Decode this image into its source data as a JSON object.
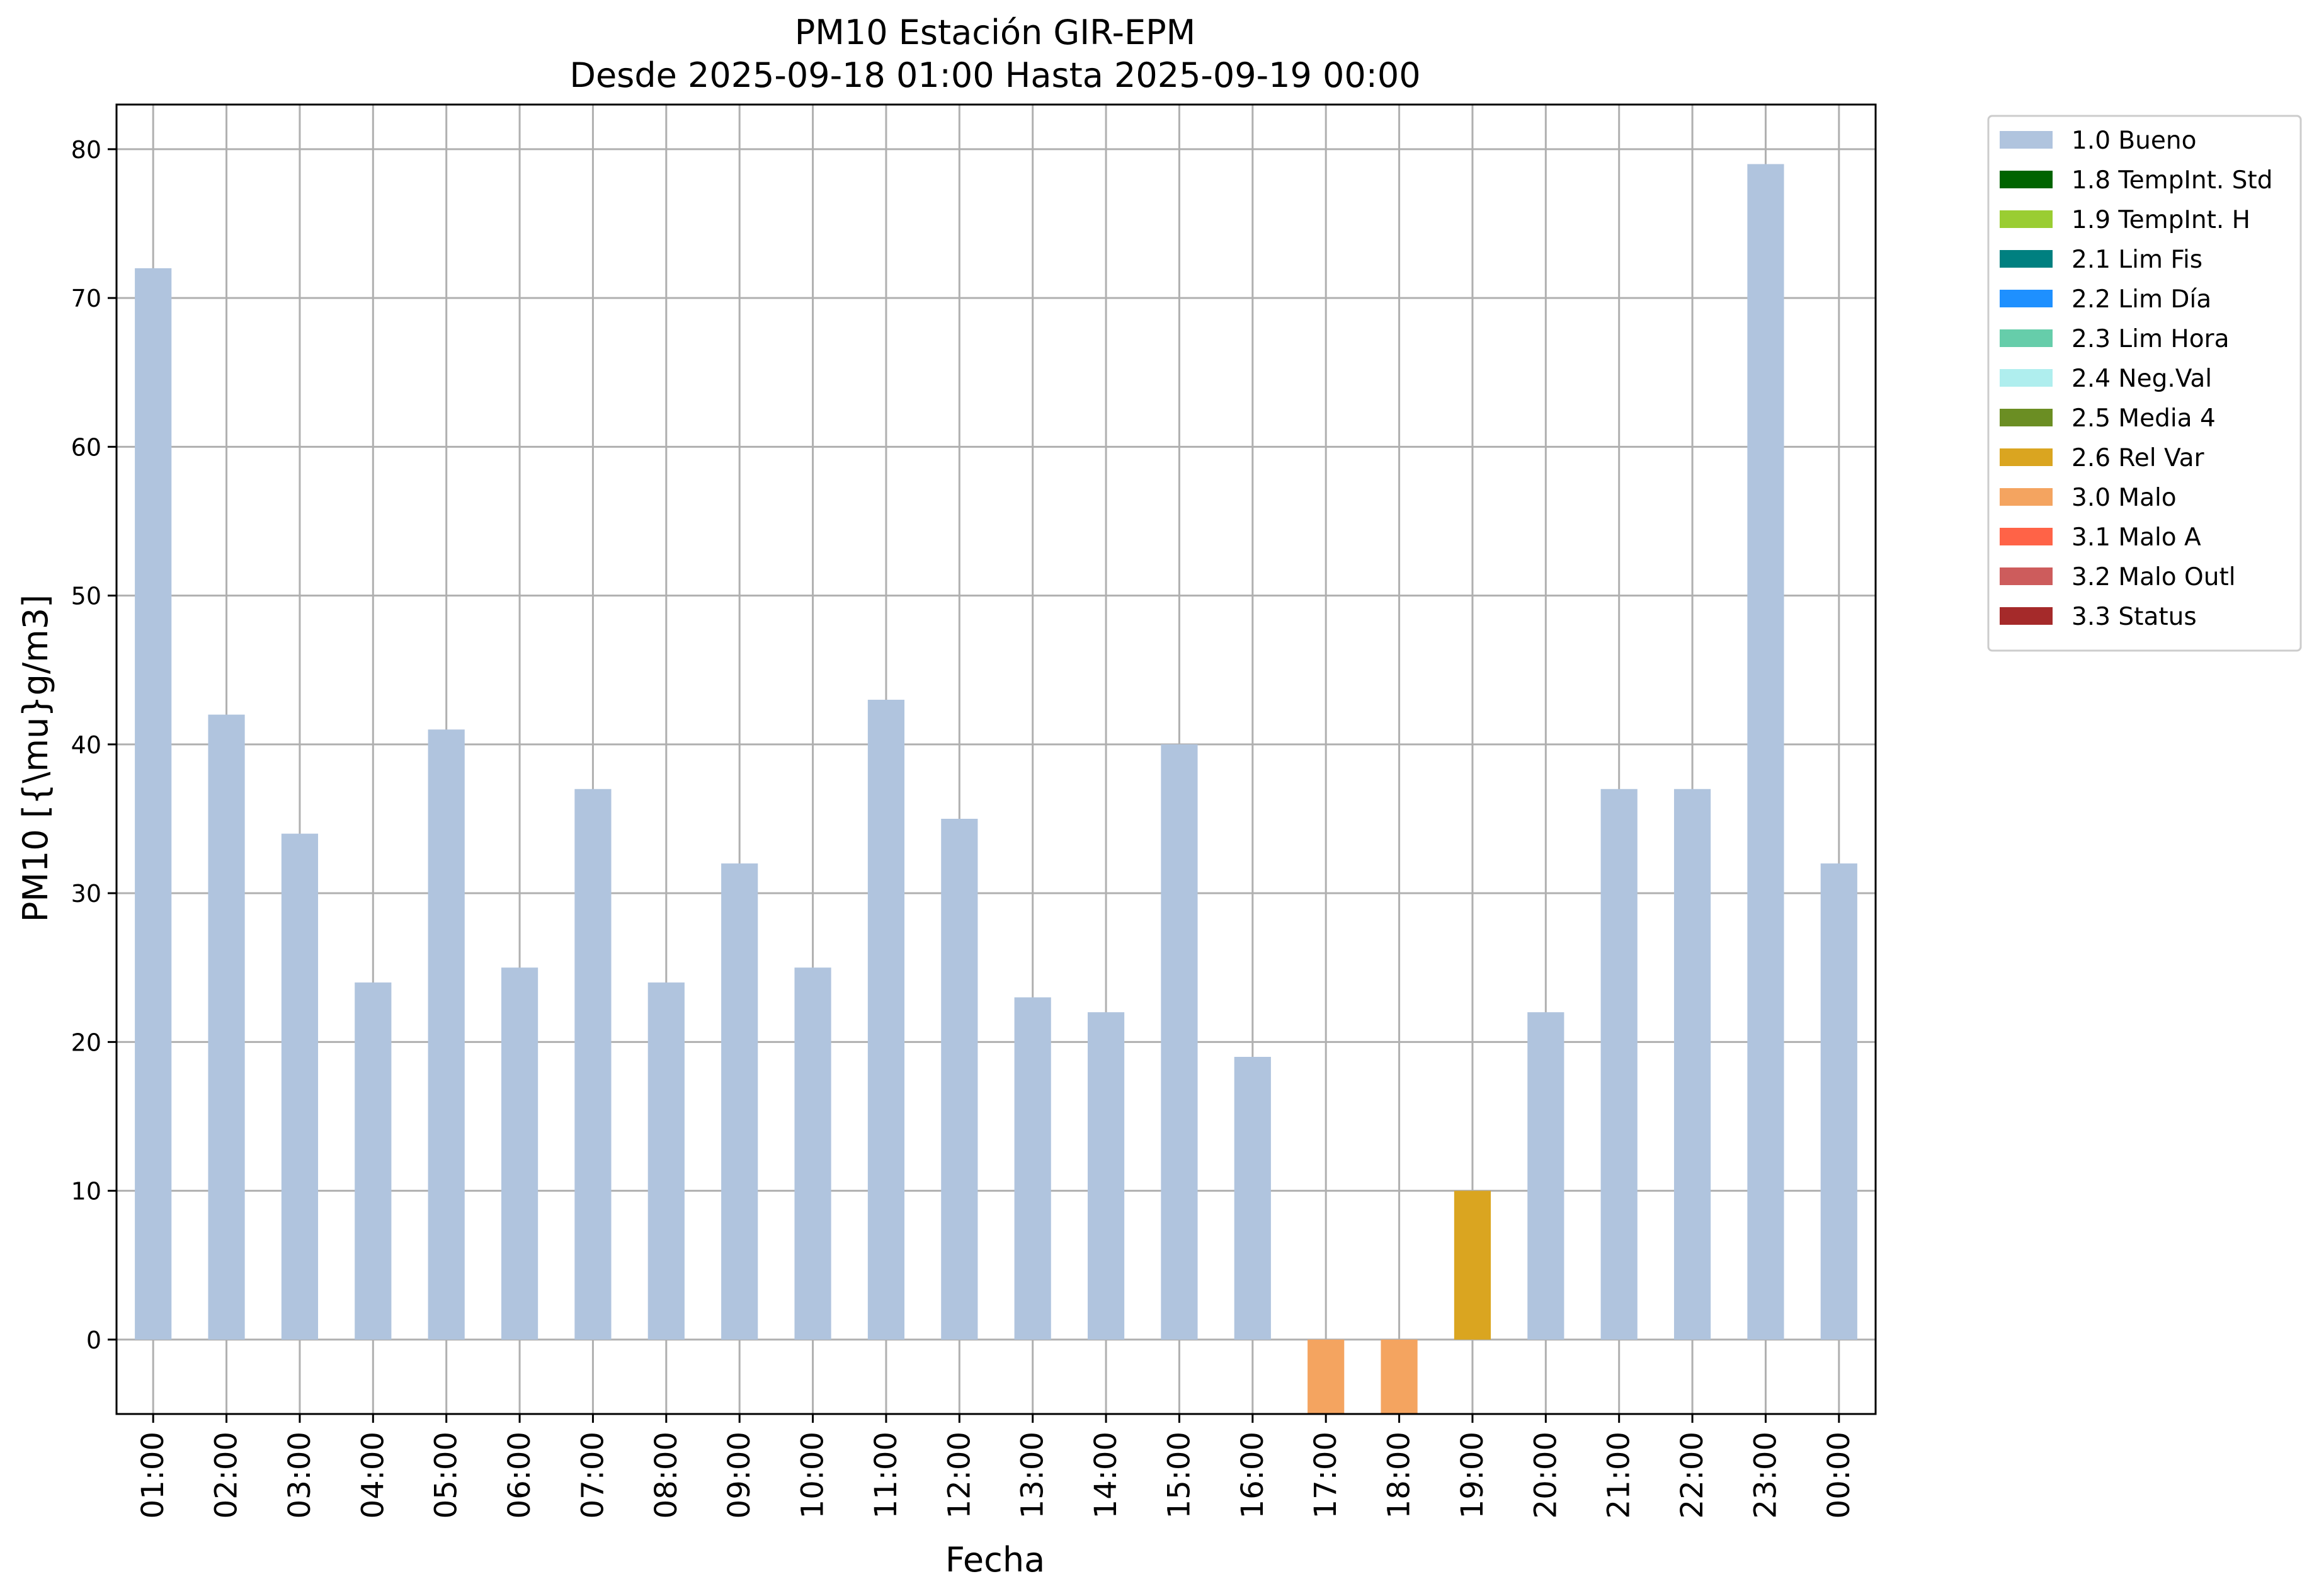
{
  "chart_data": {
    "type": "bar",
    "title": "PM10 Estación GIR-EPM",
    "subtitle": "Desde 2025-09-18 01:00 Hasta 2025-09-19 00:00",
    "xlabel": "Fecha",
    "ylabel": "PM10 [{\\mu}g/m3]",
    "ylim": [
      -5,
      83
    ],
    "yticks": [
      0,
      10,
      20,
      30,
      40,
      50,
      60,
      70,
      80
    ],
    "grid": true,
    "legend_position": "outside-top-right",
    "categories": [
      "01:00",
      "02:00",
      "03:00",
      "04:00",
      "05:00",
      "06:00",
      "07:00",
      "08:00",
      "09:00",
      "10:00",
      "11:00",
      "12:00",
      "13:00",
      "14:00",
      "15:00",
      "16:00",
      "17:00",
      "18:00",
      "19:00",
      "20:00",
      "21:00",
      "22:00",
      "23:00",
      "00:00"
    ],
    "values": [
      72,
      42,
      34,
      24,
      41,
      25,
      37,
      24,
      32,
      25,
      43,
      35,
      23,
      22,
      40,
      19,
      -5,
      -5,
      10,
      22,
      37,
      37,
      79,
      32
    ],
    "flags": [
      "1.0",
      "1.0",
      "1.0",
      "1.0",
      "1.0",
      "1.0",
      "1.0",
      "1.0",
      "1.0",
      "1.0",
      "1.0",
      "1.0",
      "1.0",
      "1.0",
      "1.0",
      "1.0",
      "3.0",
      "3.0",
      "2.6",
      "1.0",
      "1.0",
      "1.0",
      "1.0",
      "1.0"
    ],
    "legend": [
      {
        "code": "1.0",
        "label": "1.0 Bueno",
        "color": "#b0c4de"
      },
      {
        "code": "1.8",
        "label": "1.8 TempInt. Std",
        "color": "#006400"
      },
      {
        "code": "1.9",
        "label": "1.9 TempInt. H",
        "color": "#9acd32"
      },
      {
        "code": "2.1",
        "label": "2.1 Lim Fis",
        "color": "#008080"
      },
      {
        "code": "2.2",
        "label": "2.2 Lim Día",
        "color": "#1e90ff"
      },
      {
        "code": "2.3",
        "label": "2.3 Lim Hora",
        "color": "#66cdaa"
      },
      {
        "code": "2.4",
        "label": "2.4 Neg.Val",
        "color": "#afeeee"
      },
      {
        "code": "2.5",
        "label": "2.5 Media 4",
        "color": "#6b8e23"
      },
      {
        "code": "2.6",
        "label": "2.6 Rel Var",
        "color": "#daa520"
      },
      {
        "code": "3.0",
        "label": "3.0 Malo",
        "color": "#f4a460"
      },
      {
        "code": "3.1",
        "label": "3.1 Malo A",
        "color": "#ff6347"
      },
      {
        "code": "3.2",
        "label": "3.2 Malo Outl",
        "color": "#cd5c5c"
      },
      {
        "code": "3.3",
        "label": "3.3 Status",
        "color": "#a52a2a"
      }
    ]
  }
}
